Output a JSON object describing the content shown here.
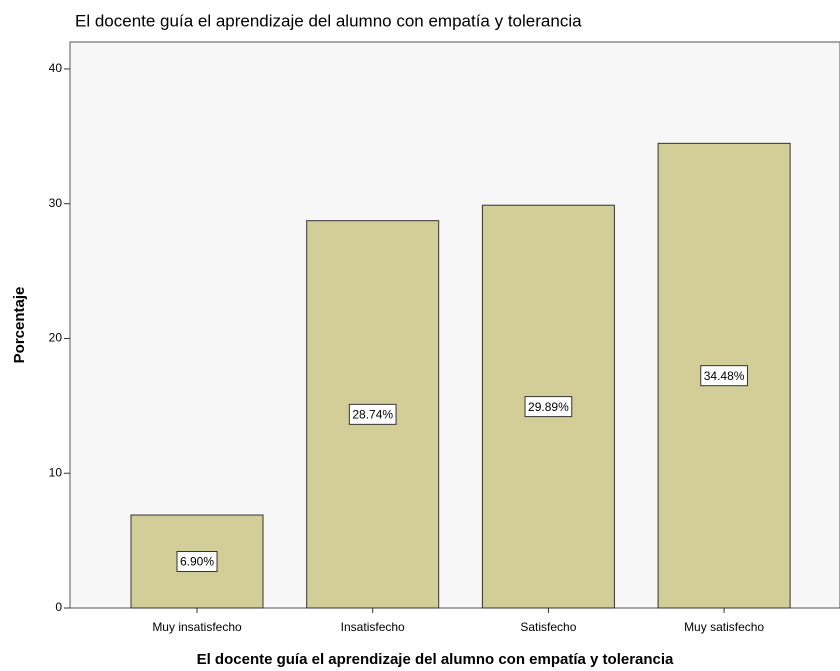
{
  "chart_data": {
    "type": "bar",
    "title": "El docente guía el aprendizaje del alumno con empatía y tolerancia",
    "x_label": "El docente guía el aprendizaje del alumno con empatía y tolerancia",
    "y_label": "Porcentaje",
    "categories": [
      "Muy insatisfecho",
      "Insatisfecho",
      "Satisfecho",
      "Muy satisfecho"
    ],
    "values": [
      6.9,
      28.74,
      29.89,
      34.48
    ],
    "value_labels": [
      "6.90%",
      "28.74%",
      "29.89%",
      "34.48%"
    ],
    "color": "#d3ce97",
    "ylim": [
      0,
      42
    ],
    "yticks": [
      0,
      10,
      20,
      30,
      40
    ],
    "grid": false
  }
}
